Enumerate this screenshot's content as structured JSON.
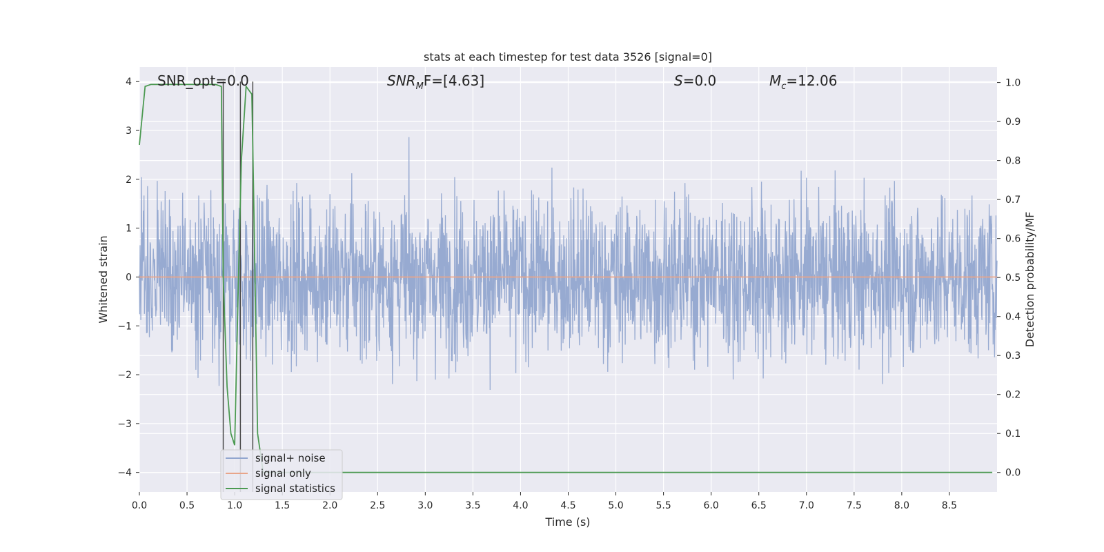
{
  "chart_data": {
    "type": "line",
    "title": "stats at each timestep for test data 3526 [signal=0]",
    "xlabel": "Time (s)",
    "ylabel": "Whitened strain",
    "y2label": "Detection probability/MF",
    "xlim": [
      0,
      9.0
    ],
    "ylim": [
      -4.4,
      4.3
    ],
    "y2lim": [
      -0.05,
      1.04
    ],
    "xticks": [
      "0.0",
      "0.5",
      "1.0",
      "1.5",
      "2.0",
      "2.5",
      "3.0",
      "3.5",
      "4.0",
      "4.5",
      "5.0",
      "5.5",
      "6.0",
      "6.5",
      "7.0",
      "7.5",
      "8.0",
      "8.5"
    ],
    "xtick_values": [
      0,
      0.5,
      1.0,
      1.5,
      2.0,
      2.5,
      3.0,
      3.5,
      4.0,
      4.5,
      5.0,
      5.5,
      6.0,
      6.5,
      7.0,
      7.5,
      8.0,
      8.5
    ],
    "yticks": [
      "−4",
      "−3",
      "−2",
      "−1",
      "0",
      "1",
      "2",
      "3",
      "4"
    ],
    "ytick_values": [
      -4,
      -3,
      -2,
      -1,
      0,
      1,
      2,
      3,
      4
    ],
    "y2ticks": [
      "0.0",
      "0.1",
      "0.2",
      "0.3",
      "0.4",
      "0.5",
      "0.6",
      "0.7",
      "0.8",
      "0.9",
      "1.0"
    ],
    "y2tick_values": [
      0,
      0.1,
      0.2,
      0.3,
      0.4,
      0.5,
      0.6,
      0.7,
      0.8,
      0.9,
      1.0
    ],
    "grid": true,
    "annotations": {
      "snr_opt": "SNR_opt=0.0",
      "snr_mf_main": "SNR",
      "snr_mf_sub": "M",
      "snr_mf_rest": "F=[4.63]",
      "s_main": "S",
      "s_rest": "=0.0",
      "mc_main": "M",
      "mc_sub": "c",
      "mc_rest": "=12.06"
    },
    "series": [
      {
        "name": "signal+ noise",
        "color": "#92a6cf",
        "axis": "left",
        "kind": "noise",
        "x_range": [
          0,
          9.0
        ],
        "envelope": [
          -3.9,
          3.9
        ]
      },
      {
        "name": "signal only",
        "color": "#e8a58a",
        "axis": "left",
        "x": [
          0,
          9.0
        ],
        "values": [
          0,
          0
        ]
      },
      {
        "name": "signal statistics",
        "color": "#4c9a52",
        "axis": "right",
        "x": [
          0,
          0.06,
          0.12,
          0.8,
          0.86,
          0.88,
          0.92,
          0.96,
          1.0,
          1.04,
          1.07,
          1.12,
          1.18,
          1.2,
          1.24,
          1.3,
          1.4,
          8.95
        ],
        "values": [
          0.84,
          0.99,
          0.995,
          0.995,
          0.99,
          0.5,
          0.22,
          0.1,
          0.07,
          0.5,
          0.8,
          0.99,
          0.97,
          0.7,
          0.1,
          0.0,
          0.0,
          0.0
        ]
      }
    ],
    "vlines": [
      0.88,
      1.06,
      1.19
    ],
    "legend": {
      "placement": "lower-left",
      "entries": [
        "signal+ noise",
        "signal only",
        "signal statistics"
      ]
    }
  },
  "colors": {
    "plot_bg": "#eaeaf2",
    "grid": "#ffffff",
    "noise": "#92a6cf",
    "signal_only": "#e8a58a",
    "statistics": "#4c9a52",
    "vline": "#4a4a4a"
  }
}
